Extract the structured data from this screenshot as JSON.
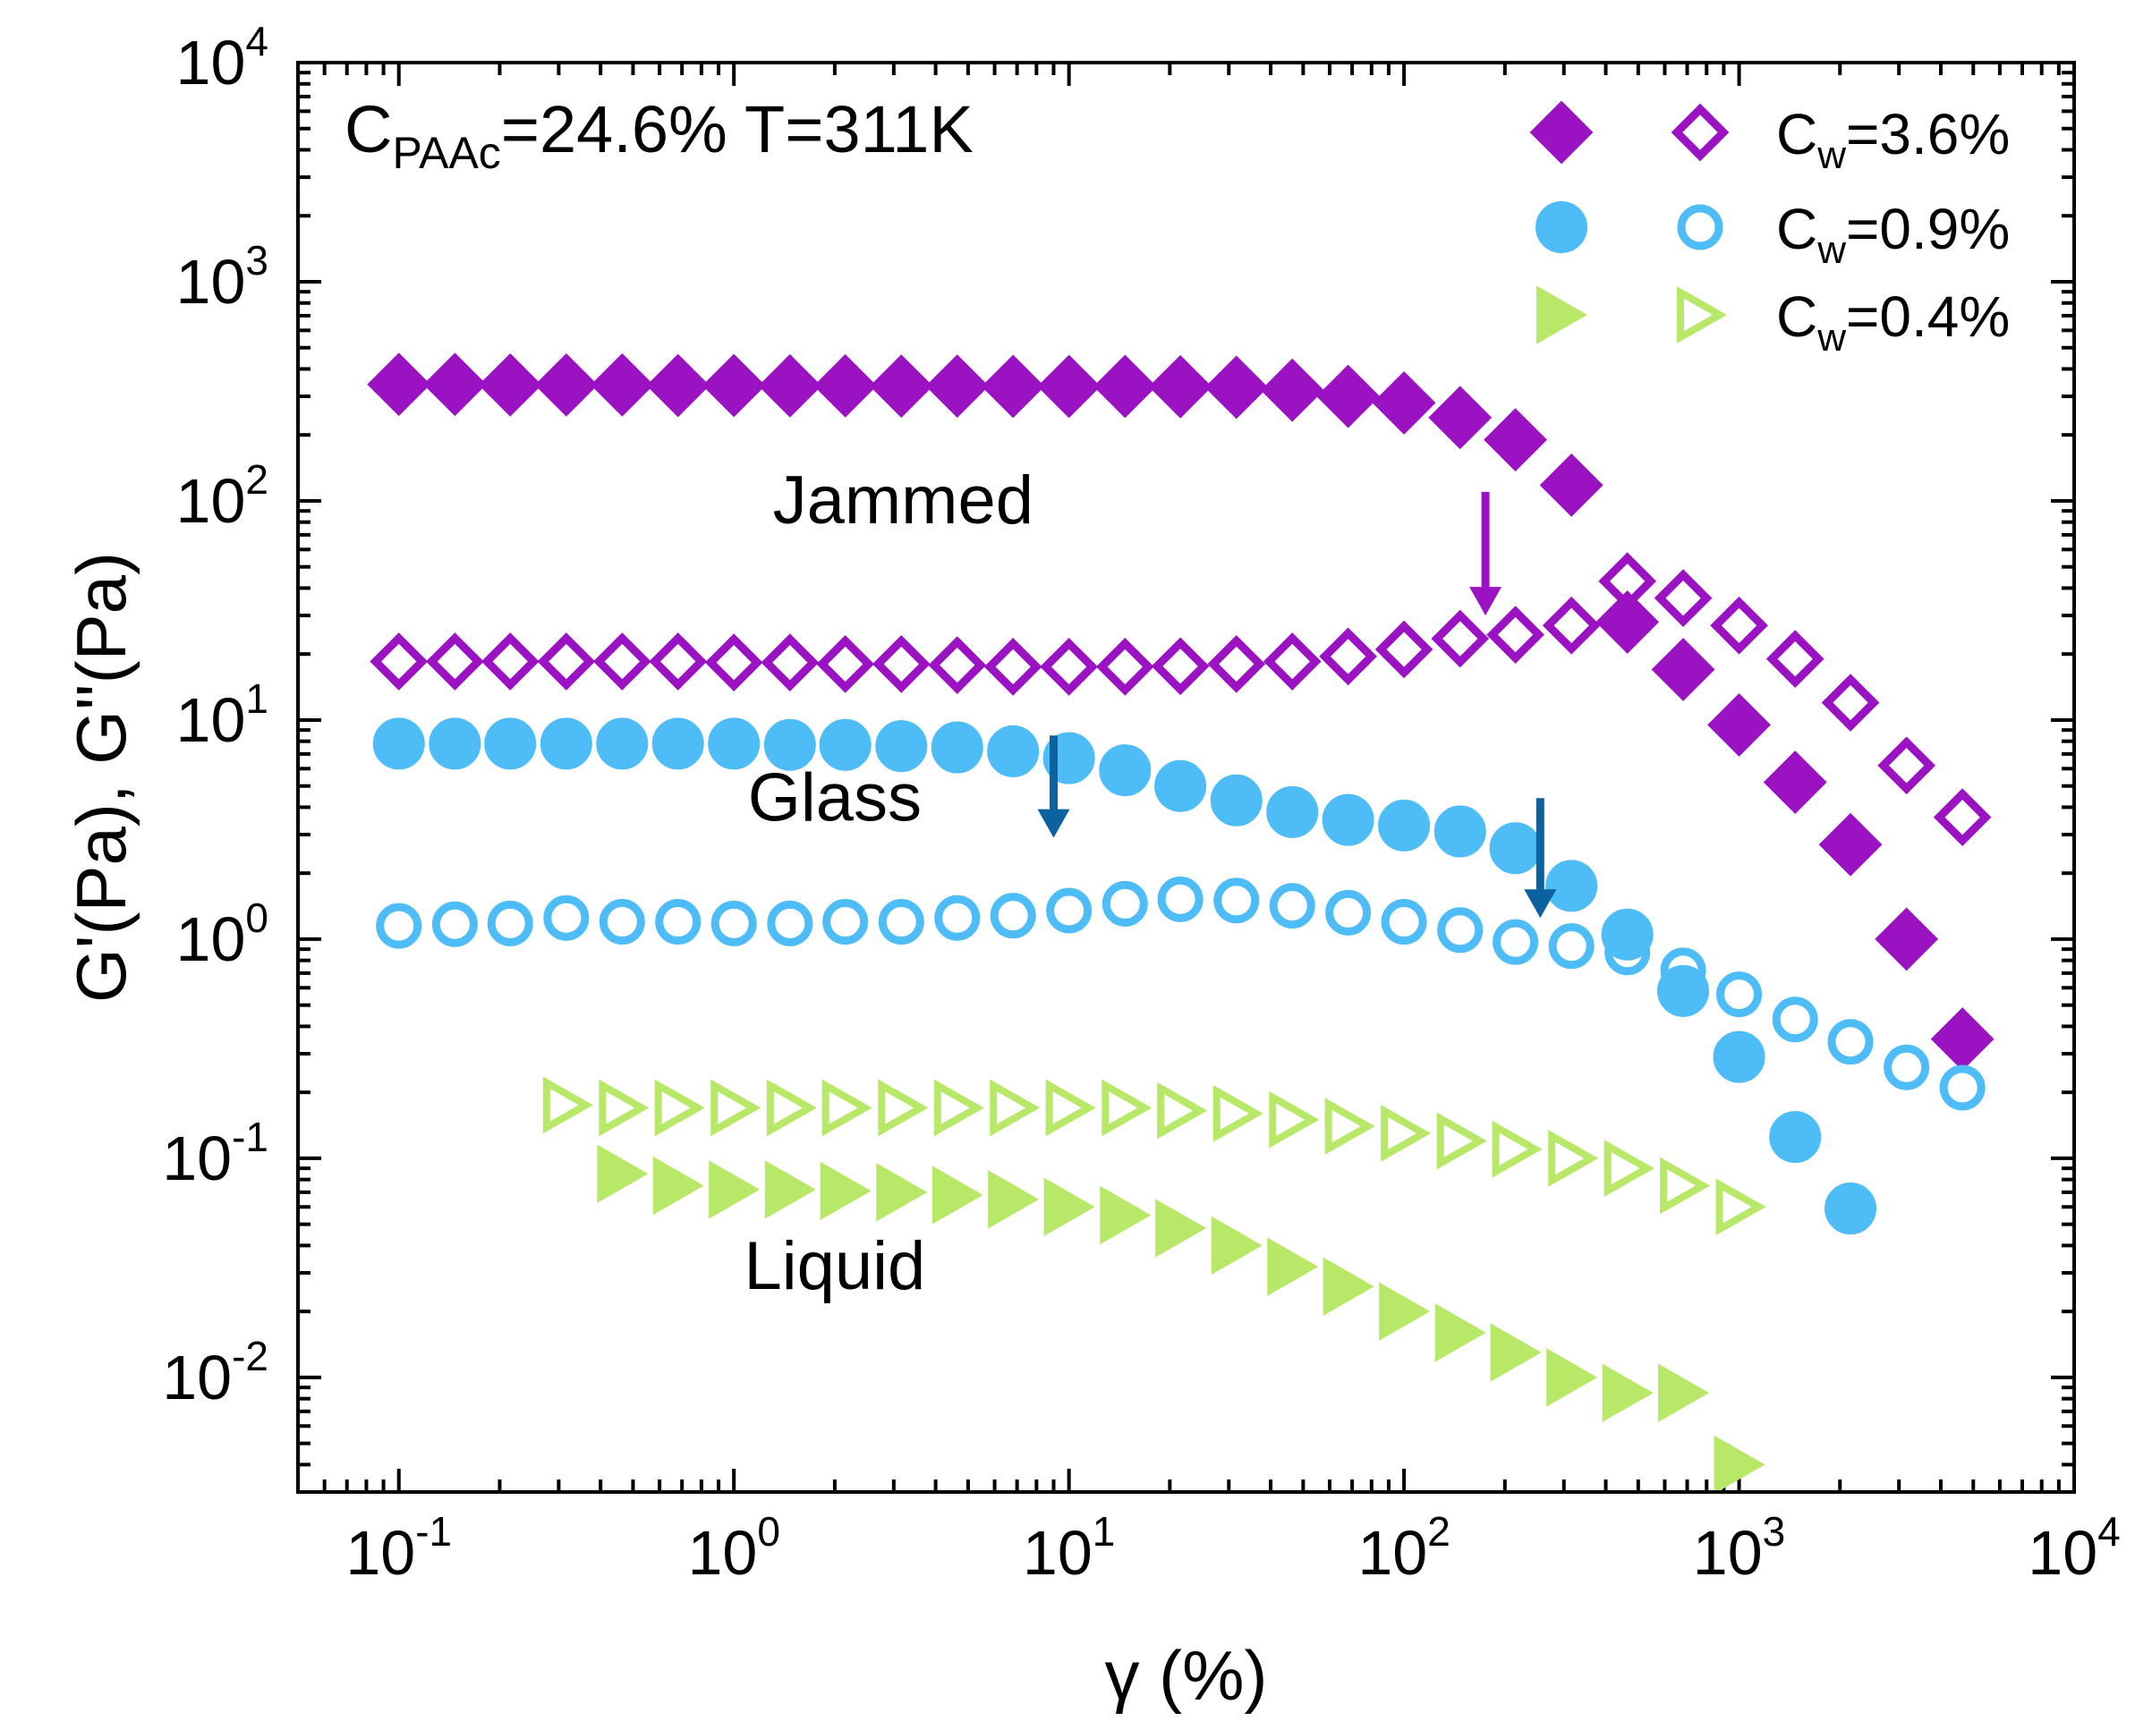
{
  "chart_data": {
    "type": "scatter",
    "title": "",
    "xlabel": "γ (%)",
    "ylabel": "G'(Pa), G''(Pa)",
    "xscale": "log",
    "yscale": "log",
    "xlim": [
      0.05,
      10000
    ],
    "ylim": [
      0.003,
      10000
    ],
    "x_ticks": [
      {
        "value": 0.1,
        "base": "10",
        "exp": "-1"
      },
      {
        "value": 1,
        "base": "10",
        "exp": "0"
      },
      {
        "value": 10,
        "base": "10",
        "exp": "1"
      },
      {
        "value": 100,
        "base": "10",
        "exp": "2"
      },
      {
        "value": 1000,
        "base": "10",
        "exp": "3"
      },
      {
        "value": 10000,
        "base": "10",
        "exp": "4"
      }
    ],
    "y_ticks": [
      {
        "value": 0.01,
        "base": "10",
        "exp": "-2"
      },
      {
        "value": 0.1,
        "base": "10",
        "exp": "-1"
      },
      {
        "value": 1,
        "base": "10",
        "exp": "0"
      },
      {
        "value": 10,
        "base": "10",
        "exp": "1"
      },
      {
        "value": 100,
        "base": "10",
        "exp": "2"
      },
      {
        "value": 1000,
        "base": "10",
        "exp": "3"
      },
      {
        "value": 10000,
        "base": "10",
        "exp": "4"
      }
    ],
    "condition": {
      "c": "C",
      "sub": "PAAc",
      "rest": "=24.6%  T=311K"
    },
    "regions": [
      {
        "text": "Jammed",
        "x": 3.2,
        "y": 100
      },
      {
        "text": "Glass",
        "x": 2.0,
        "y": 4.4
      },
      {
        "text": "Liquid",
        "x": 2.0,
        "y": 0.032
      }
    ],
    "arrows": [
      {
        "x": 175,
        "y_from": 110,
        "y_to": 30,
        "color": "#9a12c2"
      },
      {
        "x": 9,
        "y_from": 8.5,
        "y_to": 2.9,
        "color": "#0a63a0"
      },
      {
        "x": 255,
        "y_from": 4.4,
        "y_to": 1.25,
        "color": "#0a63a0"
      }
    ],
    "legend": [
      {
        "label_c": "C",
        "label_sub": "w",
        "label_rest": "=3.6%",
        "marker": "diamond",
        "color": "#9a12c2"
      },
      {
        "label_c": "C",
        "label_sub": "w",
        "label_rest": "=0.9%",
        "marker": "circle",
        "color": "#4ebcf7"
      },
      {
        "label_c": "C",
        "label_sub": "w",
        "label_rest": "=0.4%",
        "marker": "triangle-right",
        "color": "#b8e868"
      }
    ],
    "series": [
      {
        "name": "G' Cw=3.6%",
        "marker": "diamond",
        "filled": true,
        "color": "#9a12c2",
        "x": [
          0.1,
          0.147,
          0.215,
          0.316,
          0.464,
          0.681,
          1.0,
          1.47,
          2.15,
          3.16,
          4.64,
          6.81,
          10,
          14.7,
          21.5,
          31.6,
          46.4,
          68.1,
          100,
          147,
          215,
          316,
          464,
          681,
          1000,
          1470,
          2150,
          3160,
          4640
        ],
        "y": [
          340,
          340,
          338,
          338,
          338,
          336,
          336,
          335,
          335,
          334,
          334,
          333,
          333,
          333,
          332,
          330,
          320,
          300,
          280,
          240,
          190,
          118,
          28,
          17,
          9.5,
          5.2,
          2.7,
          1.0,
          0.35
        ]
      },
      {
        "name": "G'' Cw=3.6%",
        "marker": "diamond",
        "filled": false,
        "color": "#9a12c2",
        "x": [
          0.1,
          0.147,
          0.215,
          0.316,
          0.464,
          0.681,
          1.0,
          1.47,
          2.15,
          3.16,
          4.64,
          6.81,
          10,
          14.7,
          21.5,
          31.6,
          46.4,
          68.1,
          100,
          147,
          215,
          316,
          464,
          681,
          1000,
          1470,
          2150,
          3160,
          4640
        ],
        "y": [
          18.5,
          18.5,
          18.5,
          18.5,
          18.5,
          18.5,
          18.3,
          18.3,
          18.0,
          18.0,
          17.8,
          17.5,
          17.5,
          17.5,
          17.6,
          18.0,
          18.5,
          19.5,
          21,
          23.5,
          24.5,
          27,
          43,
          36,
          27,
          19,
          12,
          6.2,
          3.6
        ]
      },
      {
        "name": "G' Cw=0.9%",
        "marker": "circle",
        "filled": true,
        "color": "#4ebcf7",
        "x": [
          0.1,
          0.147,
          0.215,
          0.316,
          0.464,
          0.681,
          1.0,
          1.47,
          2.15,
          3.16,
          4.64,
          6.81,
          10,
          14.7,
          21.5,
          31.6,
          46.4,
          68.1,
          100,
          147,
          215,
          316,
          464,
          681,
          1000,
          1470,
          2150
        ],
        "y": [
          7.8,
          7.8,
          7.8,
          7.8,
          7.8,
          7.8,
          7.8,
          7.7,
          7.7,
          7.6,
          7.5,
          7.2,
          6.7,
          5.9,
          5.0,
          4.3,
          3.8,
          3.5,
          3.3,
          3.1,
          2.6,
          1.75,
          1.05,
          0.58,
          0.29,
          0.125,
          0.059
        ]
      },
      {
        "name": "G'' Cw=0.9%",
        "marker": "circle",
        "filled": false,
        "color": "#4ebcf7",
        "x": [
          0.1,
          0.147,
          0.215,
          0.316,
          0.464,
          0.681,
          1.0,
          1.47,
          2.15,
          3.16,
          4.64,
          6.81,
          10,
          14.7,
          21.5,
          31.6,
          46.4,
          68.1,
          100,
          147,
          215,
          316,
          464,
          681,
          1000,
          1470,
          2150,
          3160,
          4640
        ],
        "y": [
          1.15,
          1.17,
          1.18,
          1.25,
          1.2,
          1.2,
          1.18,
          1.18,
          1.2,
          1.2,
          1.25,
          1.28,
          1.35,
          1.45,
          1.52,
          1.5,
          1.42,
          1.32,
          1.2,
          1.1,
          0.97,
          0.93,
          0.87,
          0.72,
          0.56,
          0.43,
          0.34,
          0.26,
          0.21
        ]
      },
      {
        "name": "G' Cw=0.4%",
        "marker": "triangle-right",
        "filled": true,
        "color": "#b8e868",
        "x": [
          0.464,
          0.681,
          1.0,
          1.47,
          2.15,
          3.16,
          4.64,
          6.81,
          10,
          14.7,
          21.5,
          31.6,
          46.4,
          68.1,
          100,
          147,
          215,
          316,
          464,
          681,
          1000
        ],
        "y": [
          0.085,
          0.075,
          0.072,
          0.072,
          0.071,
          0.07,
          0.068,
          0.065,
          0.06,
          0.055,
          0.048,
          0.04,
          0.032,
          0.026,
          0.02,
          0.016,
          0.013,
          0.01,
          0.0085,
          0.0085,
          0.004
        ]
      },
      {
        "name": "G'' Cw=0.4%",
        "marker": "triangle-right",
        "filled": false,
        "color": "#b8e868",
        "x": [
          0.316,
          0.464,
          0.681,
          1.0,
          1.47,
          2.15,
          3.16,
          4.64,
          6.81,
          10,
          14.7,
          21.5,
          31.6,
          46.4,
          68.1,
          100,
          147,
          215,
          316,
          464,
          681,
          1000
        ],
        "y": [
          0.175,
          0.17,
          0.17,
          0.17,
          0.17,
          0.17,
          0.17,
          0.17,
          0.17,
          0.17,
          0.17,
          0.165,
          0.16,
          0.15,
          0.14,
          0.13,
          0.12,
          0.11,
          0.1,
          0.09,
          0.075,
          0.06
        ]
      }
    ]
  }
}
